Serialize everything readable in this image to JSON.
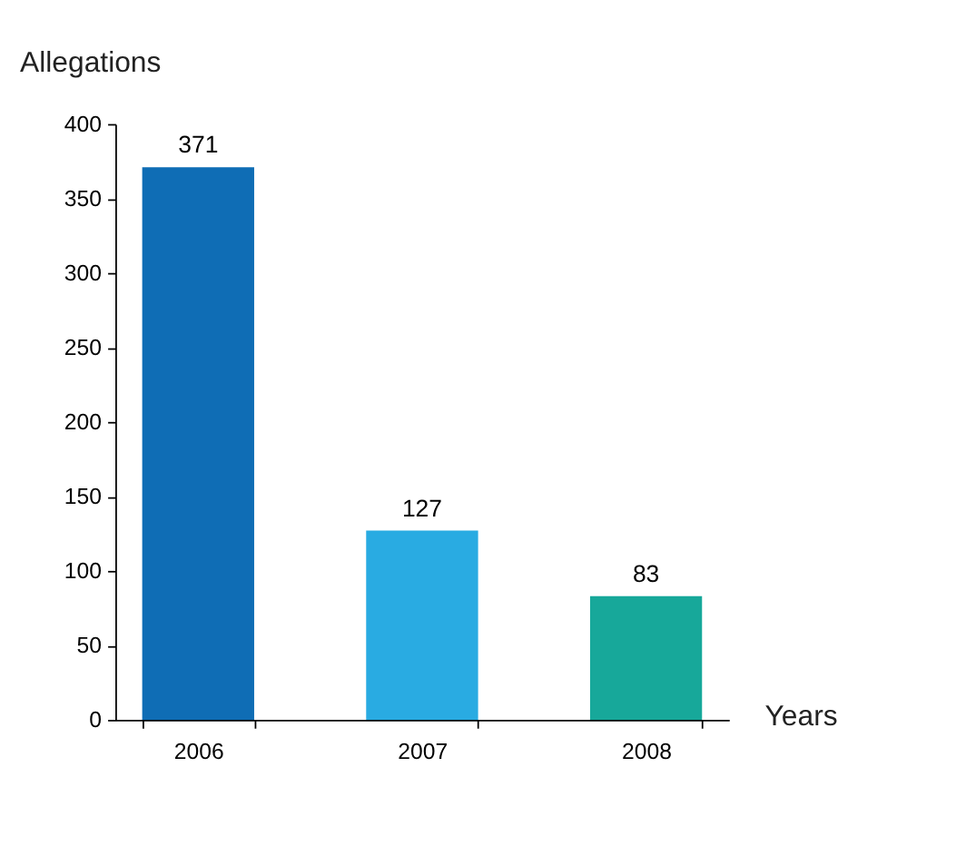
{
  "chart_data": {
    "type": "bar",
    "ylabel": "Allegations",
    "xlabel": "Years",
    "categories": [
      "2006",
      "2007",
      "2008"
    ],
    "values": [
      371,
      127,
      83
    ],
    "colors": [
      "#0f6db5",
      "#29abe2",
      "#17a89a"
    ],
    "ylim": [
      0,
      400
    ],
    "yticks": [
      0,
      50,
      100,
      150,
      200,
      250,
      300,
      350,
      400
    ],
    "data_labels": true,
    "grid": false,
    "legend": false
  }
}
